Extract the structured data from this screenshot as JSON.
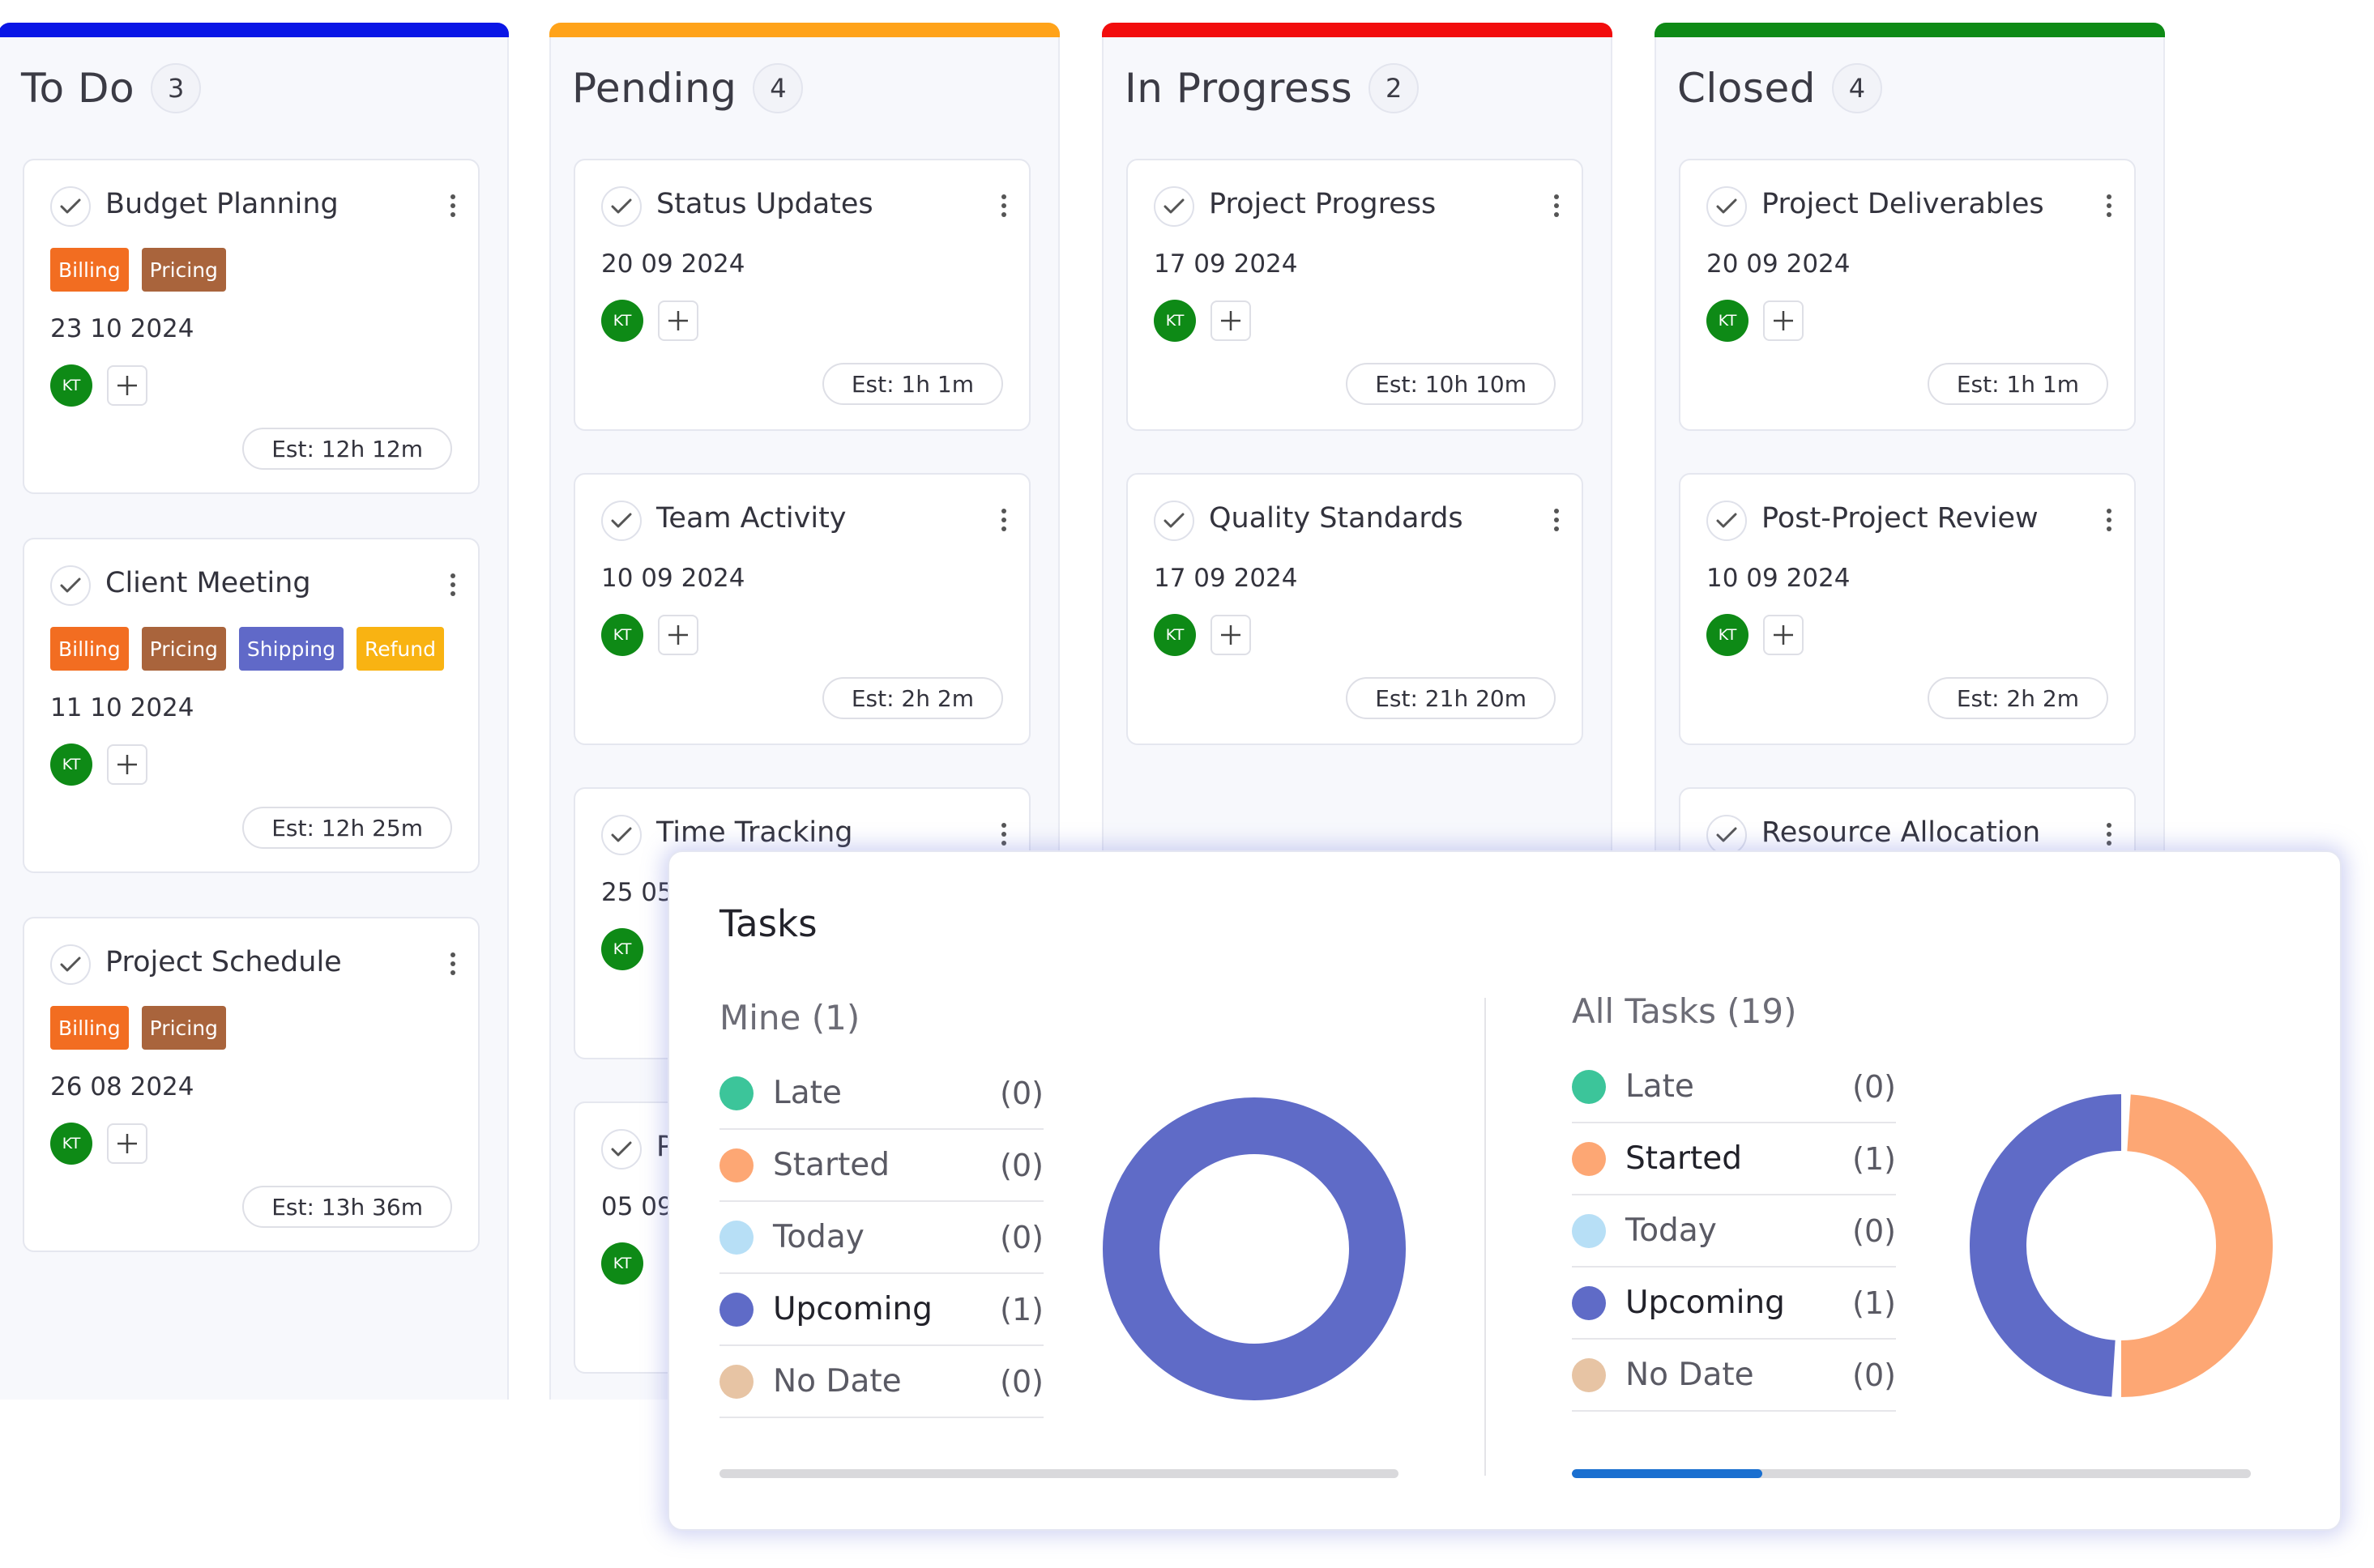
{
  "columns": [
    {
      "title": "To Do",
      "count": "3",
      "color": "#0a16e6",
      "cards": [
        {
          "title": "Budget Planning",
          "tags": [
            "Billing",
            "Pricing"
          ],
          "date": "23 10 2024",
          "avatar": "KT",
          "est": "Est: 12h 12m"
        },
        {
          "title": "Client Meeting",
          "tags": [
            "Billing",
            "Pricing",
            "Shipping",
            "Refund"
          ],
          "date": "11 10 2024",
          "avatar": "KT",
          "est": "Est: 12h 25m"
        },
        {
          "title": "Project Schedule",
          "tags": [
            "Billing",
            "Pricing"
          ],
          "date": "26 08 2024",
          "avatar": "KT",
          "est": "Est: 13h 36m"
        }
      ]
    },
    {
      "title": "Pending",
      "count": "4",
      "color": "#ffa31a",
      "cards": [
        {
          "title": "Status Updates",
          "tags": [],
          "date": "20 09 2024",
          "avatar": "KT",
          "est": "Est: 1h 1m"
        },
        {
          "title": "Team Activity",
          "tags": [],
          "date": "10 09 2024",
          "avatar": "KT",
          "est": "Est: 2h 2m"
        },
        {
          "title": "Time Tracking",
          "tags": [],
          "date": "25 05",
          "avatar": "KT",
          "est": ""
        },
        {
          "title": "P",
          "tags": [],
          "date": "05 09",
          "avatar": "KT",
          "est": ""
        }
      ]
    },
    {
      "title": "In Progress",
      "count": "2",
      "color": "#f20d0d",
      "cards": [
        {
          "title": "Project Progress",
          "tags": [],
          "date": "17 09 2024",
          "avatar": "KT",
          "est": "Est: 10h 10m"
        },
        {
          "title": "Quality Standards",
          "tags": [],
          "date": "17 09 2024",
          "avatar": "KT",
          "est": "Est: 21h 20m"
        }
      ]
    },
    {
      "title": "Closed",
      "count": "4",
      "color": "#0e8a16",
      "cards": [
        {
          "title": "Project Deliverables",
          "tags": [],
          "date": "20 09 2024",
          "avatar": "KT",
          "est": "Est: 1h 1m"
        },
        {
          "title": "Post-Project Review",
          "tags": [],
          "date": "10 09 2024",
          "avatar": "KT",
          "est": "Est: 2h 2m"
        },
        {
          "title": "Resource Allocation",
          "tags": [],
          "date": "",
          "avatar": "",
          "est": ""
        }
      ]
    }
  ],
  "tag_colors": {
    "Billing": "#f26d21",
    "Pricing": "#a9643c",
    "Shipping": "#6069c8",
    "Refund": "#f9b312"
  },
  "tasks_panel": {
    "title": "Tasks",
    "mine": {
      "title": "Mine (1)",
      "progress": 0,
      "items": [
        {
          "label": "Late",
          "value": "(0)",
          "color": "#3cc59a"
        },
        {
          "label": "Started",
          "value": "(0)",
          "color": "#fda774"
        },
        {
          "label": "Today",
          "value": "(0)",
          "color": "#b7dff6"
        },
        {
          "label": "Upcoming",
          "value": "(1)",
          "color": "#5f6bc7"
        },
        {
          "label": "No Date",
          "value": "(0)",
          "color": "#e7c4a4"
        }
      ]
    },
    "all": {
      "title": "All Tasks (19)",
      "progress": 0.28,
      "items": [
        {
          "label": "Late",
          "value": "(0)",
          "color": "#3cc59a"
        },
        {
          "label": "Started",
          "value": "(1)",
          "color": "#fda774"
        },
        {
          "label": "Today",
          "value": "(0)",
          "color": "#b7dff6"
        },
        {
          "label": "Upcoming",
          "value": "(1)",
          "color": "#5f6bc7"
        },
        {
          "label": "No Date",
          "value": "(0)",
          "color": "#e7c4a4"
        }
      ]
    }
  },
  "chart_data": [
    {
      "type": "pie",
      "categories": [
        "Late",
        "Started",
        "Today",
        "Upcoming",
        "No Date"
      ],
      "values": [
        0,
        0,
        0,
        1,
        0
      ],
      "colors": [
        "#3cc59a",
        "#fda774",
        "#b7dff6",
        "#5f6bc7",
        "#e7c4a4"
      ]
    },
    {
      "type": "pie",
      "categories": [
        "Late",
        "Started",
        "Today",
        "Upcoming",
        "No Date"
      ],
      "values": [
        0,
        1,
        0,
        1,
        0
      ],
      "colors": [
        "#3cc59a",
        "#fda774",
        "#b7dff6",
        "#5f6bc7",
        "#e7c4a4"
      ]
    }
  ]
}
